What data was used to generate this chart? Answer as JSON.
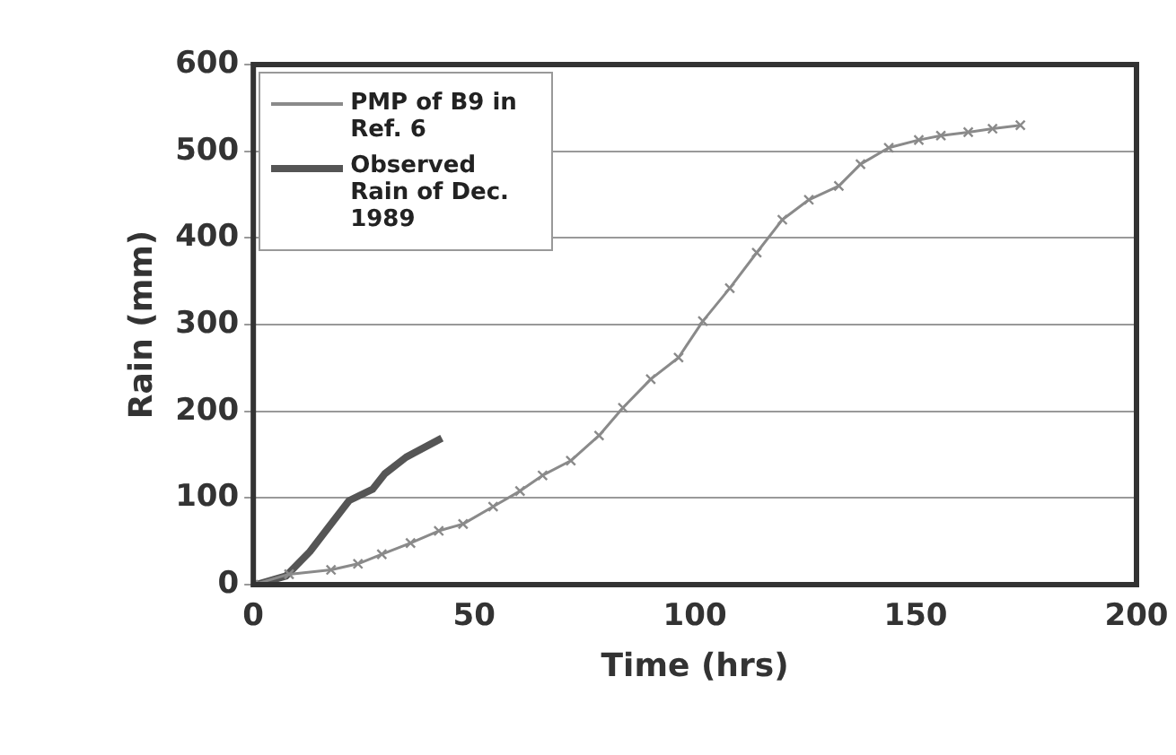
{
  "chart_data": {
    "type": "line",
    "xlabel": "Time (hrs)",
    "ylabel": "Rain (mm)",
    "xlim": [
      0,
      200
    ],
    "xticks": [
      0,
      50,
      100,
      150,
      200
    ],
    "ylim": [
      0,
      600
    ],
    "yticks": [
      0,
      100,
      200,
      300,
      400,
      500,
      600
    ],
    "grid": "y",
    "legend": "top left",
    "series": [
      {
        "name": "PMP of B9 in Ref. 6",
        "color": "#8a8a8a",
        "marker": "cross",
        "x": [
          0,
          8.1,
          17.6,
          23.7,
          29.1,
          35.6,
          42,
          47.5,
          54.3,
          60.4,
          65.5,
          71.9,
          78.3,
          83.7,
          90,
          96.3,
          101.8,
          107.9,
          114,
          119.8,
          125.8,
          132.6,
          137.5,
          143.9,
          150.7,
          155.7,
          161.9,
          167.4,
          173.7
        ],
        "values": [
          0,
          12,
          17,
          24,
          35,
          48,
          62,
          70,
          90,
          108,
          126,
          143,
          172,
          204,
          237,
          262,
          304,
          342,
          383,
          421,
          444,
          460,
          485,
          504,
          513,
          518,
          522,
          526,
          530
        ]
      },
      {
        "name": "Observed Rain of Dec. 1989",
        "color": "#555555",
        "marker": "none",
        "x": [
          0.6,
          7.4,
          12.8,
          17,
          21.7,
          27,
          29.8,
          34.6,
          42.7
        ],
        "values": [
          0,
          10,
          38,
          66,
          97,
          110,
          128,
          147,
          169
        ]
      }
    ]
  }
}
